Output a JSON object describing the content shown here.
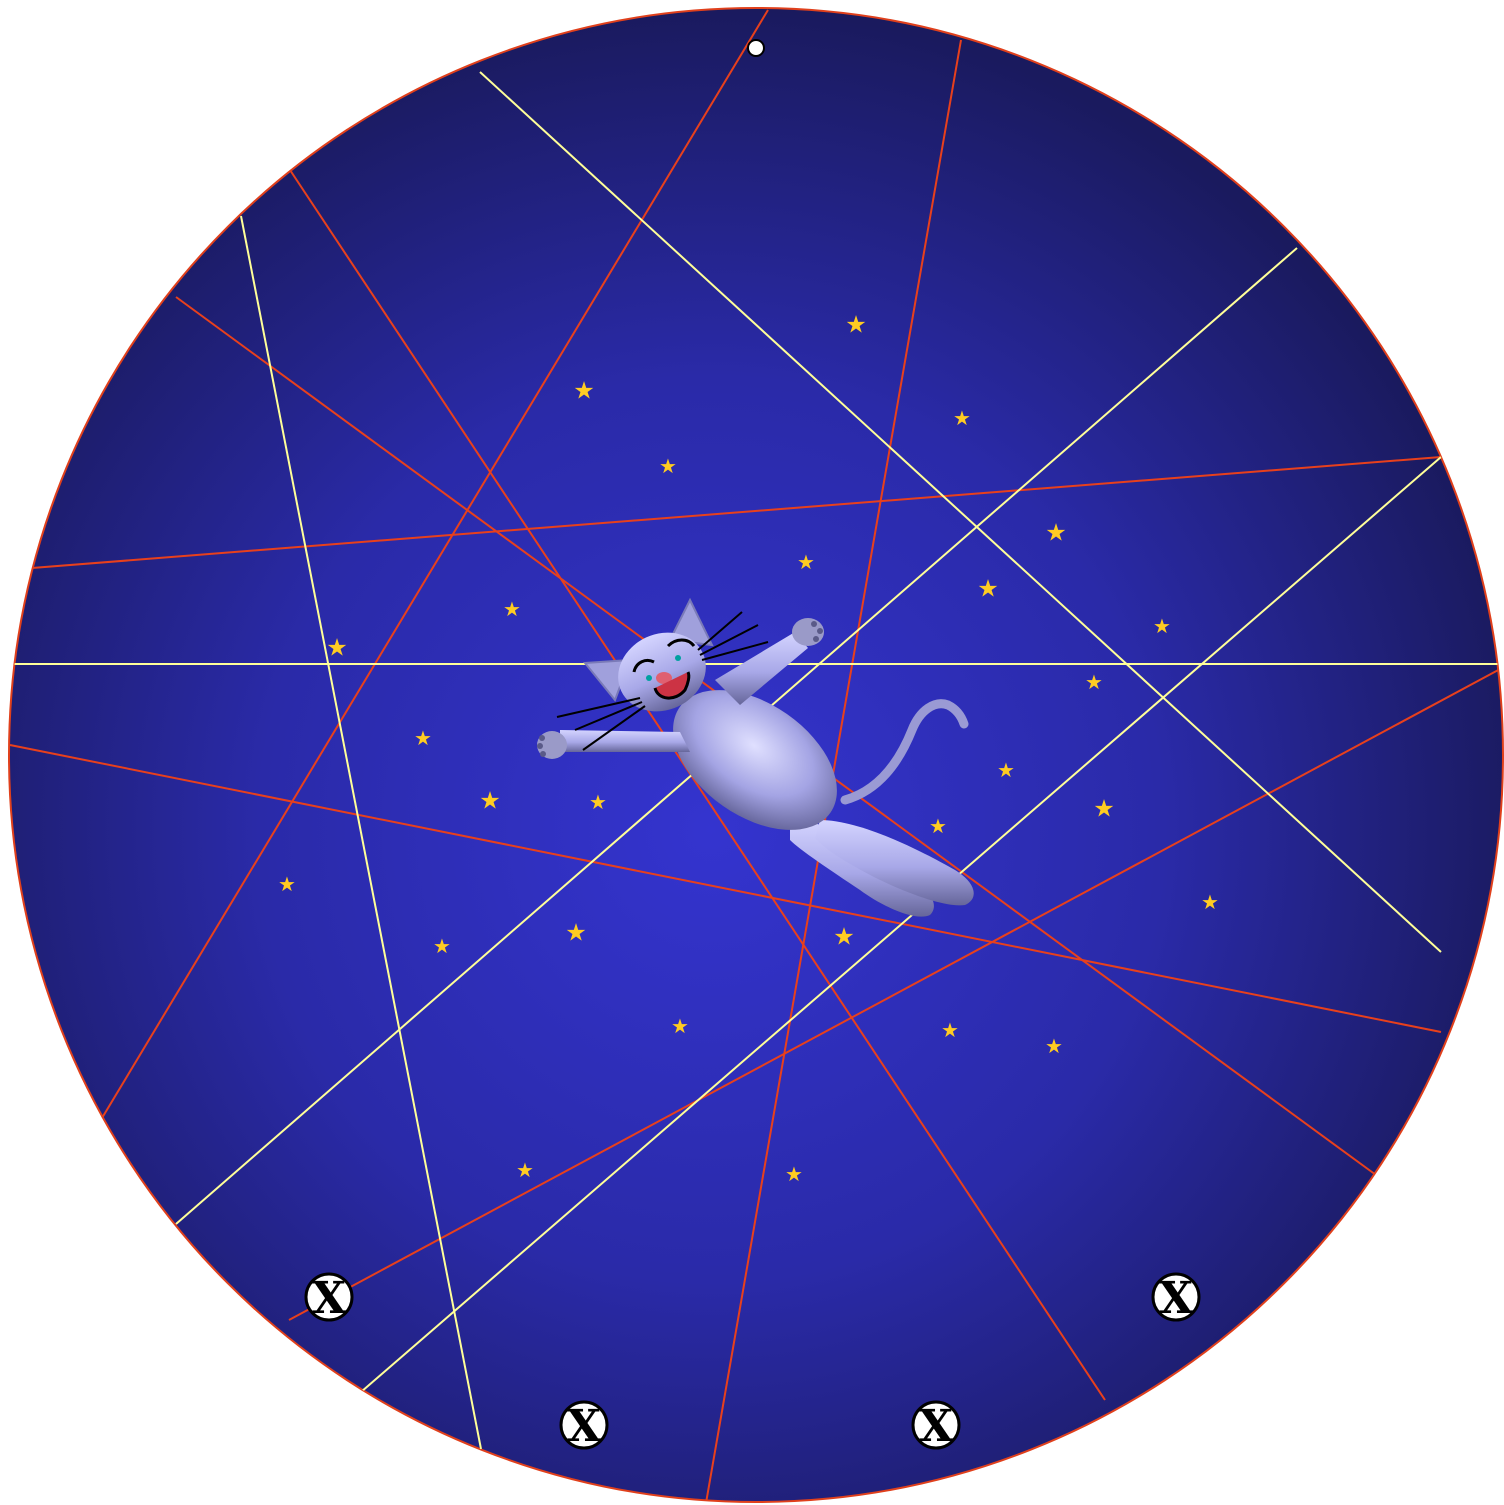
{
  "board": {
    "background_center": "#3333cc",
    "background_edge": "#1a1a5e",
    "rim_color": "#e0401c"
  },
  "beams": {
    "red_color": "#e8401c",
    "yellow_color": "#ffff99"
  },
  "stars": {
    "color": "#ffcc22",
    "glyph": "★",
    "count": 29
  },
  "cat": {
    "body_color": "#b8b8f0",
    "shade_color": "#7070a8",
    "pose": "floating-spread"
  },
  "markers": [
    {
      "id": "marker-left",
      "label": "X"
    },
    {
      "id": "marker-bottom-left",
      "label": "X"
    },
    {
      "id": "marker-bottom-right",
      "label": "X"
    },
    {
      "id": "marker-right",
      "label": "X"
    }
  ],
  "ball": {
    "color": "#ffffff"
  }
}
